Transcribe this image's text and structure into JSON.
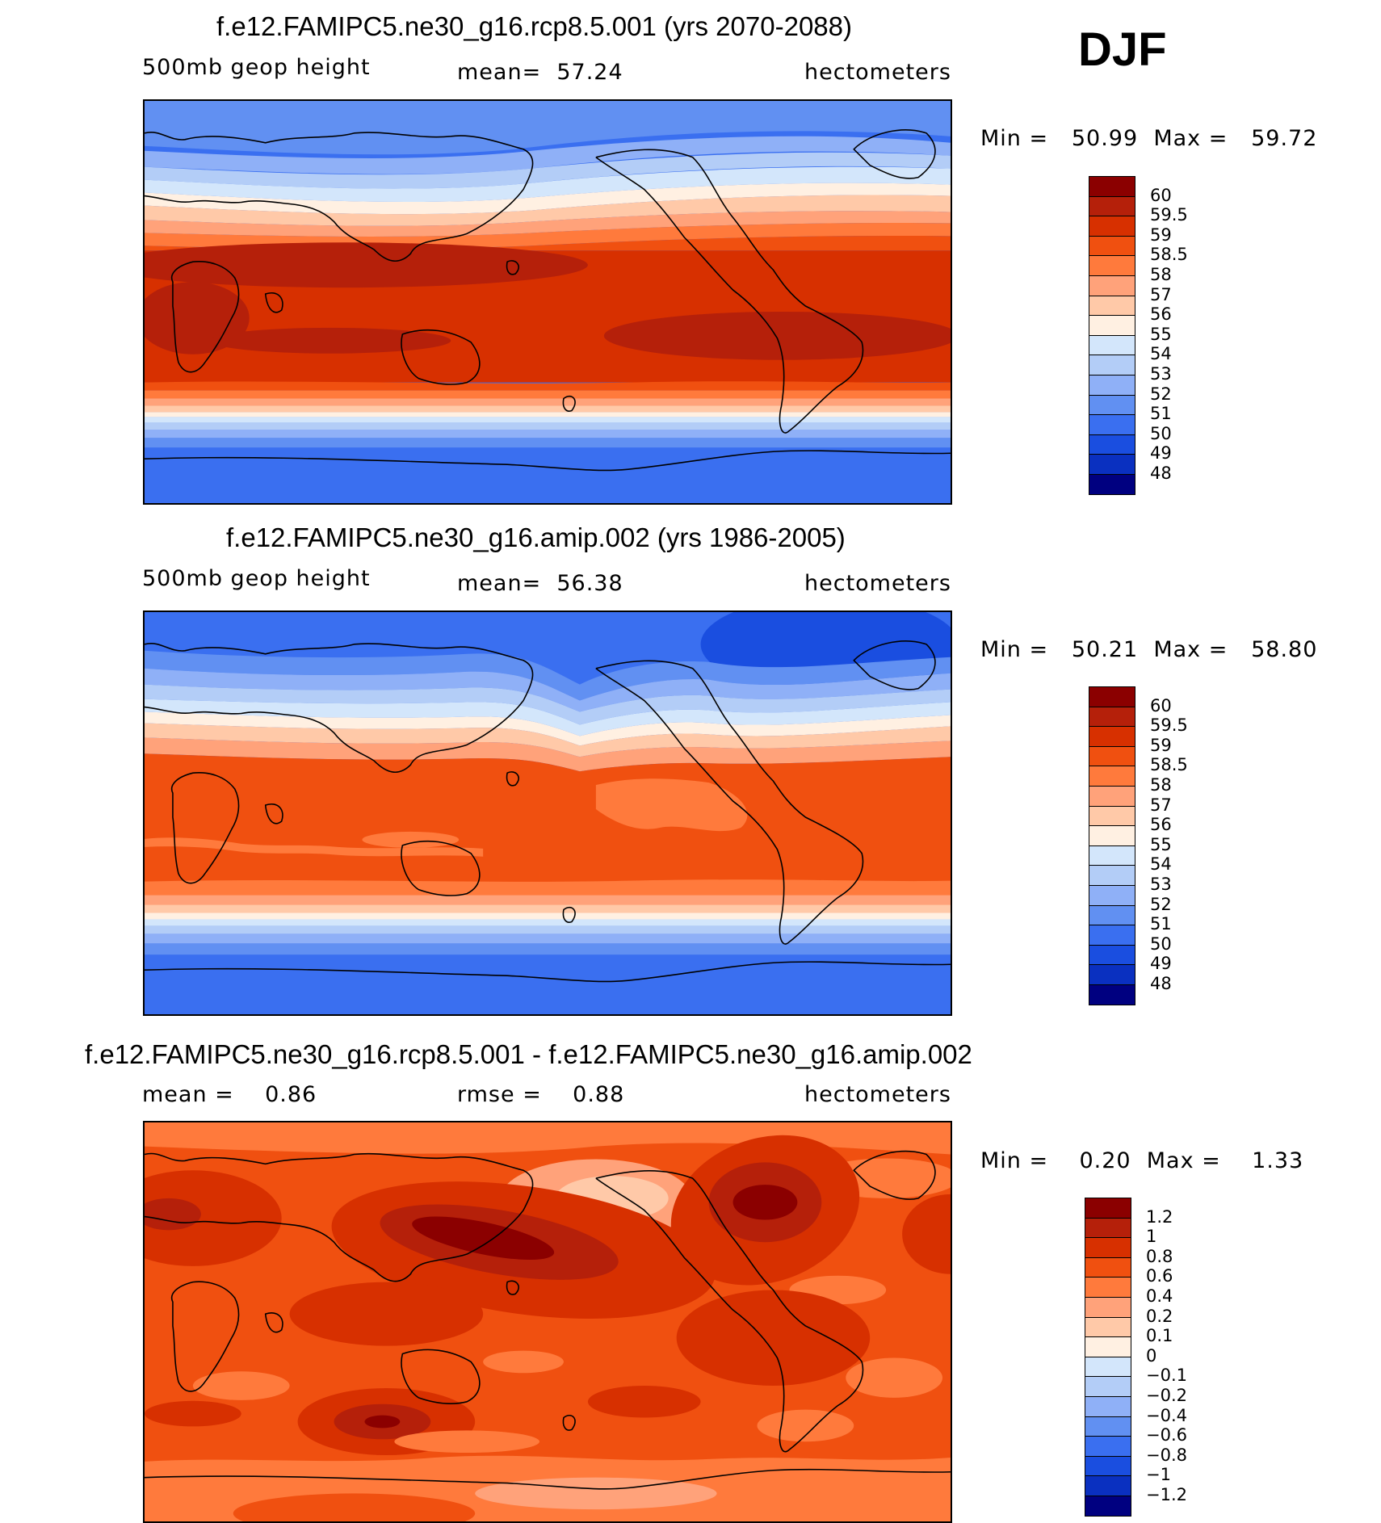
{
  "season": "DJF",
  "panels": [
    {
      "title": "f.e12.FAMIPC5.ne30_g16.rcp8.5.001 (yrs 2070-2088)",
      "left_label": "500mb geop height",
      "center_label": "mean=  57.24",
      "right_label": "hectometers",
      "minmax": "Min =   50.99  Max =   59.72"
    },
    {
      "title": "f.e12.FAMIPC5.ne30_g16.amip.002 (yrs 1986-2005)",
      "left_label": "500mb geop height",
      "center_label": "mean=  56.38",
      "right_label": "hectometers",
      "minmax": "Min =   50.21  Max =   58.80"
    },
    {
      "title": "f.e12.FAMIPC5.ne30_g16.rcp8.5.001 - f.e12.FAMIPC5.ne30_g16.amip.002",
      "left_label": "mean =    0.86",
      "center_label": "rmse =    0.88",
      "right_label": "hectometers",
      "minmax": "Min =    0.20  Max =    1.33"
    }
  ],
  "colorbar_abs": {
    "levels": [
      "60",
      "59.5",
      "59",
      "58.5",
      "58",
      "57",
      "56",
      "55",
      "54",
      "53",
      "52",
      "51",
      "50",
      "49",
      "48"
    ],
    "colors": [
      "#8b0000",
      "#b5200a",
      "#d73000",
      "#f05010",
      "#ff7a3c",
      "#ffa27a",
      "#ffc9a8",
      "#fff0e2",
      "#d3e6fb",
      "#b3cdf7",
      "#8fb0f7",
      "#6190f2",
      "#3a6ff0",
      "#1a4ee0",
      "#0a30c0",
      "#000080"
    ]
  },
  "colorbar_diff": {
    "levels": [
      "1.2",
      "1",
      "0.8",
      "0.6",
      "0.4",
      "0.2",
      "0.1",
      "0",
      "−0.1",
      "−0.2",
      "−0.4",
      "−0.6",
      "−0.8",
      "−1",
      "−1.2"
    ],
    "colors": [
      "#8b0000",
      "#b5200a",
      "#d73000",
      "#f05010",
      "#ff7a3c",
      "#ffa27a",
      "#ffc9a8",
      "#fff0e2",
      "#d3e6fb",
      "#b3cdf7",
      "#8fb0f7",
      "#6190f2",
      "#3a6ff0",
      "#1a4ee0",
      "#0a30c0",
      "#000080"
    ]
  }
}
